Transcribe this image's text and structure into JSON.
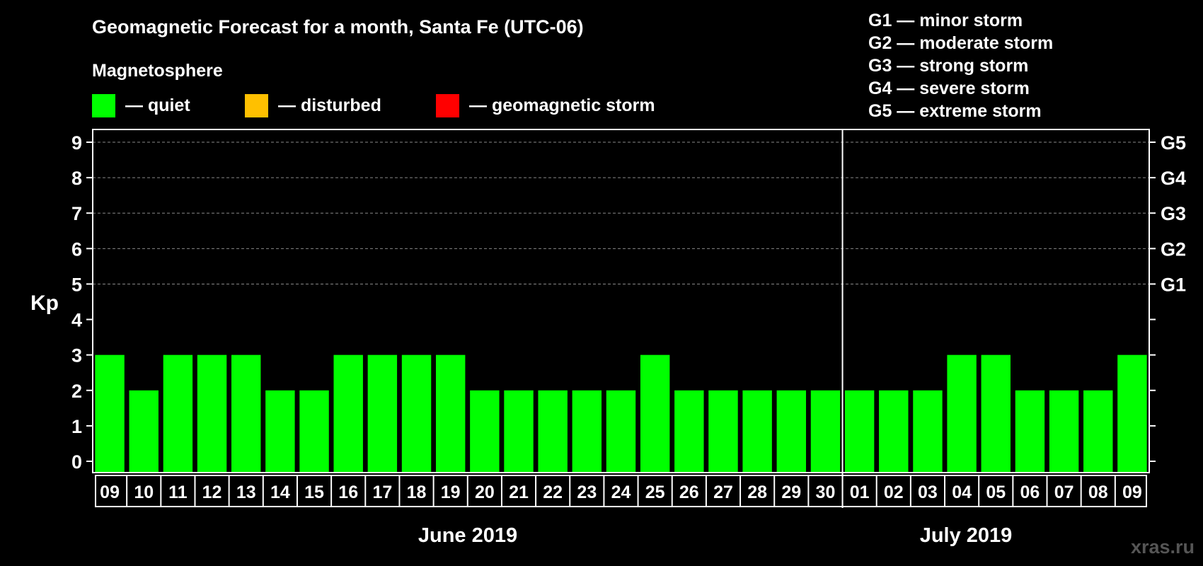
{
  "chart_data": {
    "type": "bar",
    "title": "Geomagnetic Forecast for a month, Santa Fe (UTC-06)",
    "legend_heading": "Magnetosphere",
    "legend": [
      {
        "label": "— quiet",
        "color": "#00ff00"
      },
      {
        "label": "— disturbed",
        "color": "#ffc000"
      },
      {
        "label": "— geomagnetic storm",
        "color": "#ff0000"
      }
    ],
    "storm_scale": [
      "G1 — minor storm",
      "G2 — moderate storm",
      "G3 — strong storm",
      "G4 — severe storm",
      "G5 — extreme storm"
    ],
    "ylabel": "Kp",
    "ylim": [
      0,
      9
    ],
    "yticks": [
      "0",
      "1",
      "2",
      "3",
      "4",
      "5",
      "6",
      "7",
      "8",
      "9"
    ],
    "right_axis": [
      {
        "kp": 5,
        "label": "G1"
      },
      {
        "kp": 6,
        "label": "G2"
      },
      {
        "kp": 7,
        "label": "G3"
      },
      {
        "kp": 8,
        "label": "G4"
      },
      {
        "kp": 9,
        "label": "G5"
      }
    ],
    "categories": [
      "09",
      "10",
      "11",
      "12",
      "13",
      "14",
      "15",
      "16",
      "17",
      "18",
      "19",
      "20",
      "21",
      "22",
      "23",
      "24",
      "25",
      "26",
      "27",
      "28",
      "29",
      "30",
      "01",
      "02",
      "03",
      "04",
      "05",
      "06",
      "07",
      "08",
      "09"
    ],
    "values": [
      3,
      2,
      3,
      3,
      3,
      2,
      2,
      3,
      3,
      3,
      3,
      2,
      2,
      2,
      2,
      2,
      3,
      2,
      2,
      2,
      2,
      2,
      2,
      2,
      2,
      3,
      3,
      2,
      2,
      2,
      3
    ],
    "bar_color": "#00ff00",
    "months": [
      {
        "label": "June 2019",
        "start": 0,
        "end": 21
      },
      {
        "label": "July 2019",
        "start": 22,
        "end": 30
      }
    ],
    "month_divider_after_index": 21,
    "watermark": "xras.ru"
  }
}
